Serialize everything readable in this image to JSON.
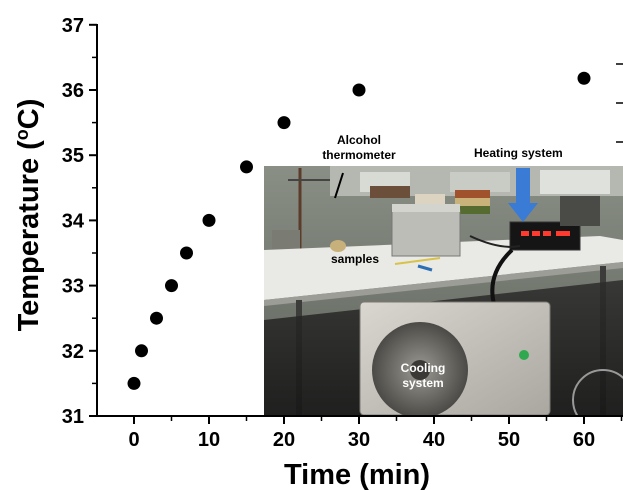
{
  "chart_data": {
    "type": "scatter",
    "xlabel": "Time (min)",
    "ylabel_main": "Temperature (",
    "ylabel_sup": "o",
    "ylabel_end": "C)",
    "xlim": [
      -5,
      65
    ],
    "ylim": [
      31,
      37
    ],
    "x_ticks": [
      0,
      10,
      20,
      30,
      40,
      50,
      60
    ],
    "y_ticks": [
      31,
      32,
      33,
      34,
      35,
      36,
      37
    ],
    "points": [
      {
        "x": 0,
        "y": 31.5
      },
      {
        "x": 1,
        "y": 32.0
      },
      {
        "x": 3,
        "y": 32.5
      },
      {
        "x": 5,
        "y": 33.0
      },
      {
        "x": 7,
        "y": 33.5
      },
      {
        "x": 10,
        "y": 34.0
      },
      {
        "x": 15,
        "y": 34.82
      },
      {
        "x": 20,
        "y": 35.5
      },
      {
        "x": 30,
        "y": 36.0
      },
      {
        "x": 60,
        "y": 36.18
      }
    ],
    "marker_color": "#000000",
    "grid": false
  },
  "inset_photo": {
    "labels": {
      "alcohol_thermometer": "Alcohol\nthermometer",
      "heating_system": "Heating system",
      "samples": "samples",
      "cooling_system": "Cooling\nsystem"
    },
    "arrow_color": "#3a7bd5"
  }
}
